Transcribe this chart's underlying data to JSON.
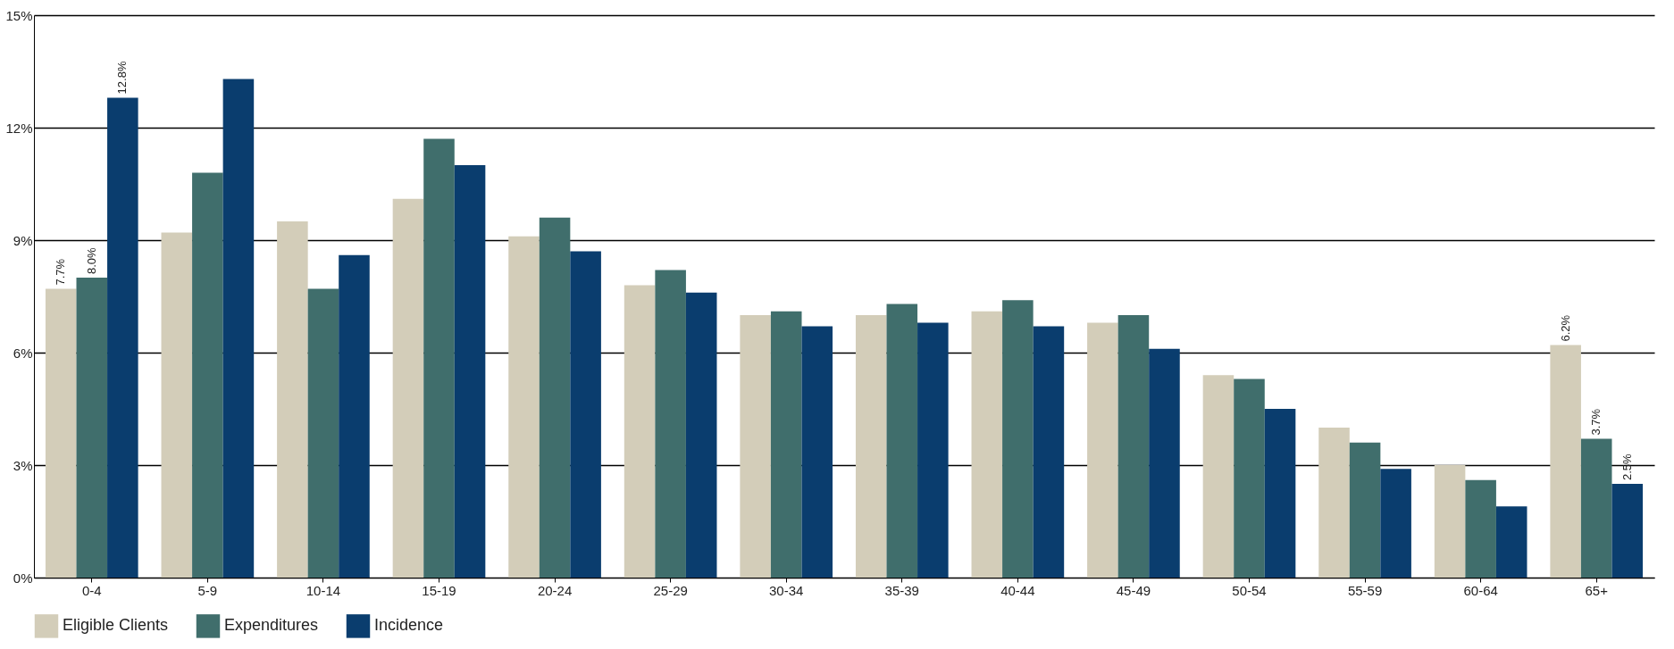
{
  "chart_data": {
    "type": "bar",
    "categories": [
      "0-4",
      "5-9",
      "10-14",
      "15-19",
      "20-24",
      "25-29",
      "30-34",
      "35-39",
      "40-44",
      "45-49",
      "50-54",
      "55-59",
      "60-64",
      "65+"
    ],
    "series": [
      {
        "name": "Eligible Clients",
        "color": "#d3cdb9",
        "values": [
          7.7,
          9.2,
          9.5,
          10.1,
          9.1,
          7.8,
          7.0,
          7.0,
          7.1,
          6.8,
          5.4,
          4.0,
          3.0,
          6.2
        ],
        "value_labels": [
          "7.7%",
          null,
          null,
          null,
          null,
          null,
          null,
          null,
          null,
          null,
          null,
          null,
          null,
          "6.2%"
        ]
      },
      {
        "name": "Expenditures",
        "color": "#406e6c",
        "values": [
          8.0,
          10.8,
          7.7,
          11.7,
          9.6,
          8.2,
          7.1,
          7.3,
          7.4,
          7.0,
          5.3,
          3.6,
          2.6,
          3.7
        ],
        "value_labels": [
          "8.0%",
          null,
          null,
          null,
          null,
          null,
          null,
          null,
          null,
          null,
          null,
          null,
          null,
          "3.7%"
        ]
      },
      {
        "name": "Incidence",
        "color": "#0a3d6e",
        "values": [
          12.8,
          13.3,
          8.6,
          11.0,
          8.7,
          7.6,
          6.7,
          6.8,
          6.7,
          6.1,
          4.5,
          2.9,
          1.9,
          2.5
        ],
        "value_labels": [
          "12.8%",
          null,
          null,
          null,
          null,
          null,
          null,
          null,
          null,
          null,
          null,
          null,
          null,
          "2.5%"
        ]
      }
    ],
    "ylim": [
      0,
      15
    ],
    "yticks": [
      {
        "value": 0,
        "label": "0%"
      },
      {
        "value": 3,
        "label": "3%"
      },
      {
        "value": 6,
        "label": "6%"
      },
      {
        "value": 9,
        "label": "9%"
      },
      {
        "value": 12,
        "label": "12%"
      },
      {
        "value": 15,
        "label": "15%"
      }
    ],
    "grid": "y",
    "legend": "bottom"
  }
}
